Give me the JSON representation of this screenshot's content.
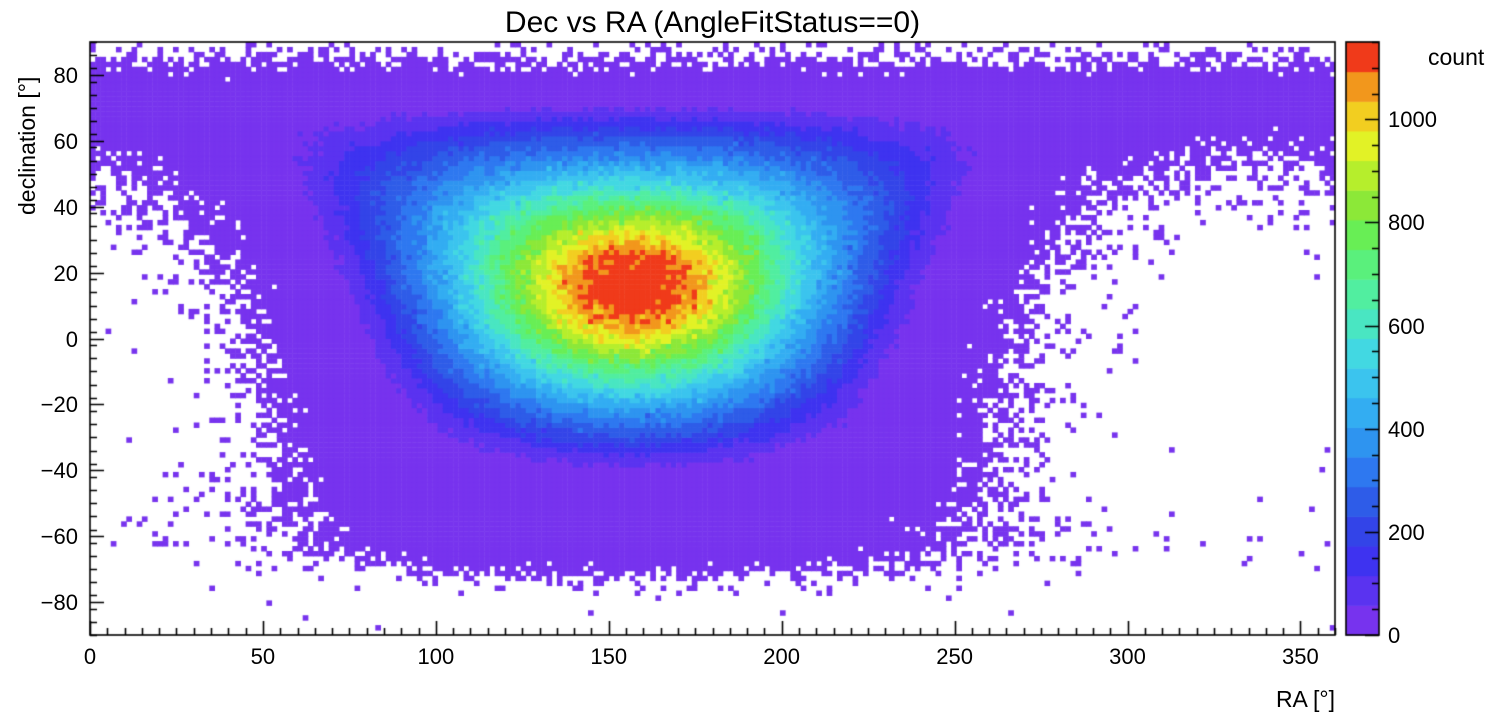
{
  "chart_data": {
    "type": "heatmap",
    "title": "Dec vs RA (AngleFitStatus==0)",
    "xlabel": "RA [°]",
    "ylabel": "declination [°]",
    "zlabel": "count",
    "xlim": [
      0,
      360
    ],
    "ylim": [
      -90,
      90
    ],
    "zlim": [
      0,
      1150
    ],
    "x_ticks": [
      0,
      50,
      100,
      150,
      200,
      250,
      300,
      350
    ],
    "x_minor_step": 5,
    "y_ticks": [
      -80,
      -60,
      -40,
      -20,
      0,
      20,
      40,
      60,
      80
    ],
    "y_minor_step": 4,
    "z_ticks": [
      0,
      200,
      400,
      600,
      800,
      1000
    ],
    "z_minor_step": 50,
    "n_levels": 20,
    "grid": false,
    "colorbar_position": "right",
    "palette": [
      "#7733EE",
      "#5A33F0",
      "#3E33F0",
      "#3344E8",
      "#2E5CE8",
      "#2E78F0",
      "#2E94F0",
      "#33ADF2",
      "#3BC4EE",
      "#42D8E2",
      "#49E6C2",
      "#51EEA0",
      "#5AF07C",
      "#68EE55",
      "#8CE838",
      "#B6EE2C",
      "#E2F226",
      "#F2CE20",
      "#F2971C",
      "#F03A1A"
    ],
    "bins": {
      "nx": 240,
      "ny": 120
    },
    "distribution_model": {
      "description": "2D histogram of event declination vs right ascension: a bright quasi-Gaussian peak (max ~1150 counts) centered near RA 157°, Dec +16°, sitting on a low-count (~tens of counts) violet exposure halo of ~88° angular radius with ragged Poisson-speckled edges; coverage fades out north of Dec ~+74° (sparse speckles up to +88° across all RA) and south of Dec ~-64°.",
      "center_ra_deg": 157,
      "center_dec_deg": 16,
      "peak_count": 1150,
      "sigma_deg": 36,
      "dec_aspect": 1.45,
      "core_edge_radius_deg": 76,
      "core_edge_exponent": 20,
      "halo_count": 28,
      "halo_radius_deg": 88,
      "halo_edge_exponent": 16,
      "north_fade_dec": 74,
      "north_fade_width_deg": 3,
      "south_fade_dec": -64,
      "south_fade_width_deg": 3,
      "background_rate_per_bin": 0.0002,
      "random_seed": 1337
    }
  }
}
